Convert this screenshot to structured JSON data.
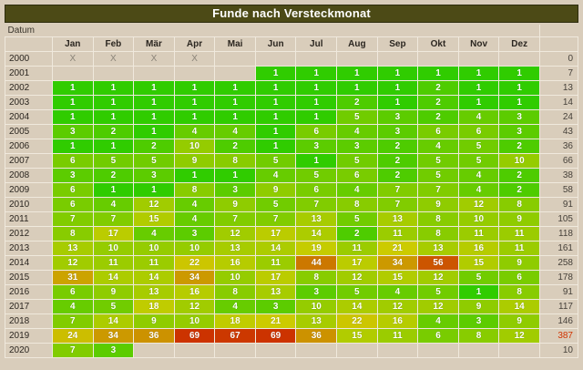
{
  "title": "Funde nach Versteckmonat",
  "header": {
    "datum_label": "Datum"
  },
  "colors": {
    "page_background": "#d9cdbb",
    "title_background": "#4c4a16",
    "title_border": "#2d2c0d",
    "title_text": "#ffffff",
    "gridline": "#f0e9dd",
    "cell_text": "#ffffff",
    "x_text": "#8a8378",
    "highlight_total_text": "#d13400",
    "heat_low": "#2ecc00",
    "heat_high": "#cc3300"
  },
  "chart_data": {
    "type": "heatmap",
    "title": "Funde nach Versteckmonat",
    "x_labels": [
      "Jan",
      "Feb",
      "Mär",
      "Apr",
      "Mai",
      "Jun",
      "Jul",
      "Aug",
      "Sep",
      "Okt",
      "Nov",
      "Dez"
    ],
    "y_labels": [
      "2000",
      "2001",
      "2002",
      "2003",
      "2004",
      "2005",
      "2006",
      "2007",
      "2008",
      "2009",
      "2010",
      "2011",
      "2012",
      "2013",
      "2014",
      "2015",
      "2016",
      "2017",
      "2018",
      "2019",
      "2020"
    ],
    "heat_scale": {
      "hue_start": 106,
      "hue_end": 15,
      "exponent": 0.55,
      "min": 1,
      "max": 69,
      "saturation": "100%",
      "lightness": "40%"
    },
    "rows": [
      {
        "year": "2000",
        "cells": [
          "X",
          "X",
          "X",
          "X",
          null,
          null,
          null,
          null,
          null,
          null,
          null,
          null
        ],
        "total": 0
      },
      {
        "year": "2001",
        "cells": [
          null,
          null,
          null,
          null,
          null,
          1,
          1,
          1,
          1,
          1,
          1,
          1
        ],
        "total": 7
      },
      {
        "year": "2002",
        "cells": [
          1,
          1,
          1,
          1,
          1,
          1,
          1,
          1,
          1,
          2,
          1,
          1
        ],
        "total": 13
      },
      {
        "year": "2003",
        "cells": [
          1,
          1,
          1,
          1,
          1,
          1,
          1,
          2,
          1,
          2,
          1,
          1
        ],
        "total": 14
      },
      {
        "year": "2004",
        "cells": [
          1,
          1,
          1,
          1,
          1,
          1,
          1,
          5,
          3,
          2,
          4,
          3
        ],
        "total": 24
      },
      {
        "year": "2005",
        "cells": [
          3,
          2,
          1,
          4,
          4,
          1,
          6,
          4,
          3,
          6,
          6,
          3
        ],
        "total": 43
      },
      {
        "year": "2006",
        "cells": [
          1,
          1,
          2,
          10,
          2,
          1,
          3,
          3,
          2,
          4,
          5,
          2
        ],
        "total": 36
      },
      {
        "year": "2007",
        "cells": [
          6,
          5,
          5,
          9,
          8,
          5,
          1,
          5,
          2,
          5,
          5,
          10
        ],
        "total": 66
      },
      {
        "year": "2008",
        "cells": [
          3,
          2,
          3,
          1,
          1,
          4,
          5,
          6,
          2,
          5,
          4,
          2
        ],
        "total": 38
      },
      {
        "year": "2009",
        "cells": [
          6,
          1,
          1,
          8,
          3,
          9,
          6,
          4,
          7,
          7,
          4,
          2
        ],
        "total": 58
      },
      {
        "year": "2010",
        "cells": [
          6,
          4,
          12,
          4,
          9,
          5,
          7,
          8,
          7,
          9,
          12,
          8
        ],
        "total": 91
      },
      {
        "year": "2011",
        "cells": [
          7,
          7,
          15,
          4,
          7,
          7,
          13,
          5,
          13,
          8,
          10,
          9
        ],
        "total": 105
      },
      {
        "year": "2012",
        "cells": [
          8,
          17,
          4,
          3,
          12,
          17,
          14,
          2,
          11,
          8,
          11,
          11
        ],
        "total": 118
      },
      {
        "year": "2013",
        "cells": [
          13,
          10,
          10,
          10,
          13,
          14,
          19,
          11,
          21,
          13,
          16,
          11
        ],
        "total": 161
      },
      {
        "year": "2014",
        "cells": [
          12,
          11,
          11,
          22,
          16,
          11,
          44,
          17,
          34,
          56,
          15,
          9
        ],
        "total": 258
      },
      {
        "year": "2015",
        "cells": [
          31,
          14,
          14,
          34,
          10,
          17,
          8,
          12,
          15,
          12,
          5,
          6
        ],
        "total": 178
      },
      {
        "year": "2016",
        "cells": [
          6,
          9,
          13,
          16,
          8,
          13,
          3,
          5,
          4,
          5,
          1,
          8
        ],
        "total": 91
      },
      {
        "year": "2017",
        "cells": [
          4,
          5,
          18,
          12,
          4,
          3,
          10,
          14,
          12,
          12,
          9,
          14
        ],
        "total": 117
      },
      {
        "year": "2018",
        "cells": [
          7,
          14,
          9,
          10,
          18,
          21,
          13,
          22,
          16,
          4,
          3,
          9
        ],
        "total": 146
      },
      {
        "year": "2019",
        "cells": [
          24,
          34,
          36,
          69,
          67,
          69,
          36,
          15,
          11,
          6,
          8,
          12
        ],
        "total": 387,
        "total_color": "#d13400"
      },
      {
        "year": "2020",
        "cells": [
          7,
          3,
          null,
          null,
          null,
          null,
          null,
          null,
          null,
          null,
          null,
          null
        ],
        "total": 10
      }
    ]
  }
}
